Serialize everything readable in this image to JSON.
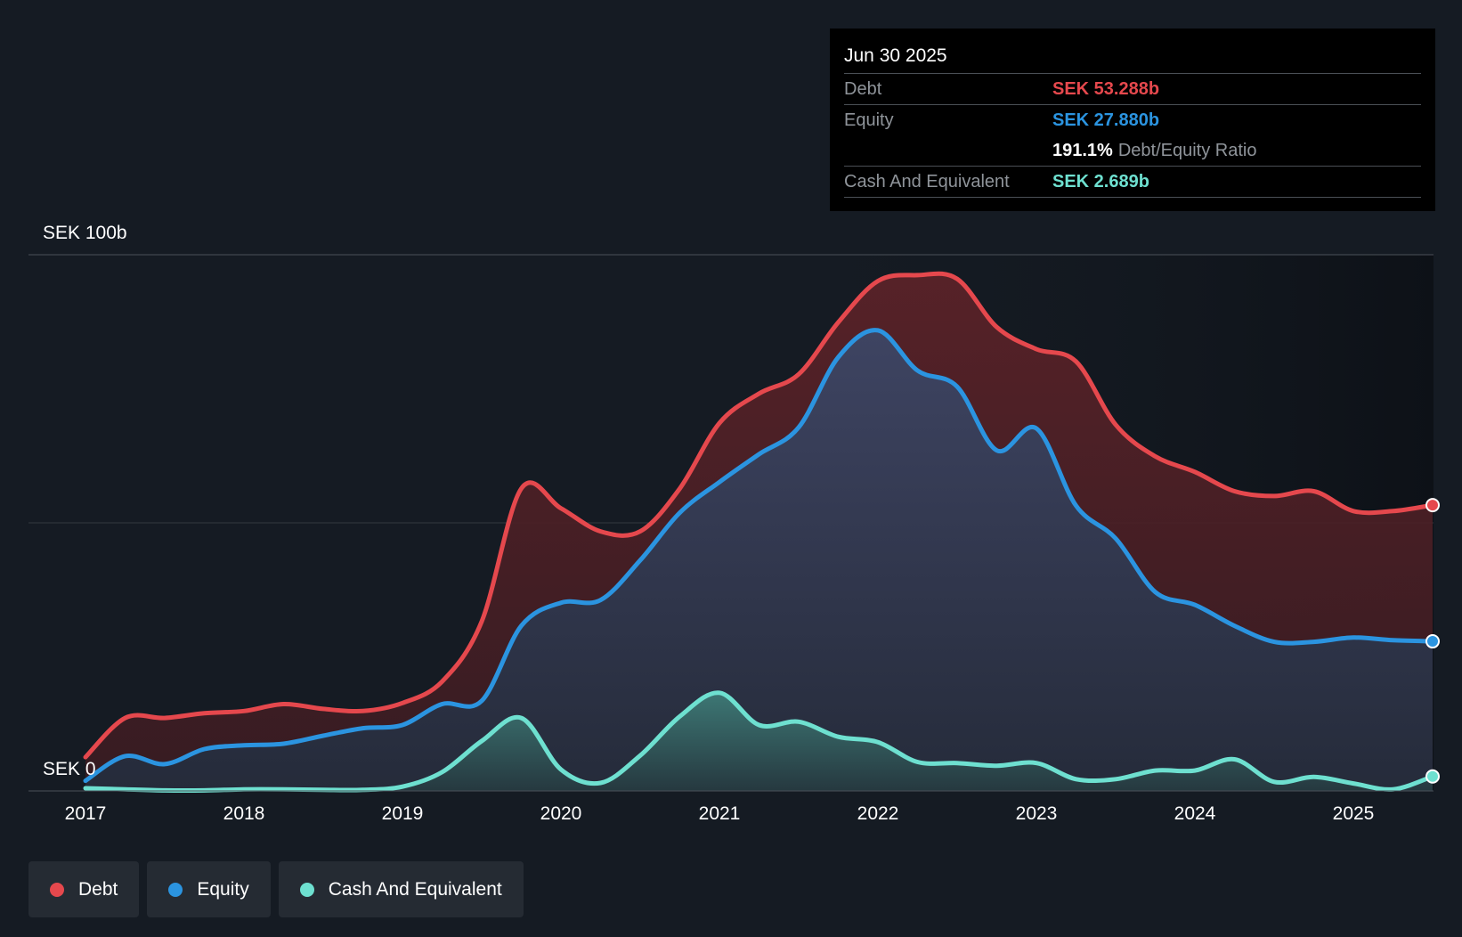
{
  "chart_data": {
    "type": "area",
    "title": "",
    "xlabel": "",
    "ylabel": "",
    "y_axis_labels": {
      "top": "SEK 100b",
      "bottom": "SEK 0"
    },
    "ylim": [
      0,
      100
    ],
    "xlim": [
      2017.0,
      2025.5
    ],
    "x_ticks": [
      "2017",
      "2018",
      "2019",
      "2020",
      "2021",
      "2022",
      "2023",
      "2024",
      "2025"
    ],
    "x": [
      2017.0,
      2017.25,
      2017.5,
      2017.75,
      2018.0,
      2018.25,
      2018.5,
      2018.75,
      2019.0,
      2019.25,
      2019.5,
      2019.75,
      2020.0,
      2020.25,
      2020.5,
      2020.75,
      2021.0,
      2021.25,
      2021.5,
      2021.75,
      2022.0,
      2022.25,
      2022.5,
      2022.75,
      2023.0,
      2023.25,
      2023.5,
      2023.75,
      2024.0,
      2024.25,
      2024.5,
      2024.75,
      2025.0,
      2025.25,
      2025.5
    ],
    "series": [
      {
        "name": "Debt",
        "color": "#e5484d",
        "values": [
          6.3,
          13.6,
          13.6,
          14.5,
          14.9,
          16.2,
          15.3,
          14.9,
          16.4,
          20.4,
          31.6,
          56.4,
          52.7,
          48.4,
          48.4,
          56.4,
          68.6,
          74.1,
          77.7,
          87.4,
          95.1,
          96.2,
          95.5,
          86.5,
          82.4,
          80.1,
          68.3,
          62.4,
          59.5,
          55.9,
          55.0,
          55.9,
          52.2,
          52.2,
          53.3
        ]
      },
      {
        "name": "Equity",
        "color": "#2b94e0",
        "values": [
          1.9,
          6.5,
          5.0,
          7.8,
          8.5,
          8.8,
          10.3,
          11.7,
          12.3,
          16.2,
          16.8,
          30.8,
          35.1,
          35.6,
          43.0,
          51.9,
          57.6,
          62.8,
          67.8,
          80.9,
          85.9,
          78.4,
          75.4,
          63.5,
          67.6,
          53.2,
          47.1,
          37.1,
          34.7,
          30.8,
          27.8,
          27.8,
          28.6,
          28.1,
          27.9
        ]
      },
      {
        "name": "Cash And Equivalent",
        "color": "#6ee0d0",
        "values": [
          0.5,
          0.3,
          0.1,
          0.1,
          0.3,
          0.3,
          0.2,
          0.2,
          0.8,
          3.5,
          9.3,
          13.6,
          4.0,
          1.5,
          6.6,
          13.9,
          18.3,
          12.3,
          12.9,
          10.1,
          9.1,
          5.4,
          5.2,
          4.7,
          5.2,
          2.2,
          2.2,
          3.8,
          3.8,
          5.9,
          1.7,
          2.6,
          1.4,
          0.3,
          2.7
        ]
      }
    ]
  },
  "tooltip": {
    "date": "Jun 30 2025",
    "rows": [
      {
        "label": "Debt",
        "value": "SEK 53.288b"
      },
      {
        "label": "Equity",
        "value": "SEK 27.880b"
      },
      {
        "ratio_value": "191.1%",
        "ratio_label": "Debt/Equity Ratio"
      },
      {
        "label": "Cash And Equivalent",
        "value": "SEK 2.689b"
      }
    ]
  },
  "legend": [
    {
      "label": "Debt",
      "color": "#e5484d"
    },
    {
      "label": "Equity",
      "color": "#2b94e0"
    },
    {
      "label": "Cash And Equivalent",
      "color": "#6ee0d0"
    }
  ]
}
